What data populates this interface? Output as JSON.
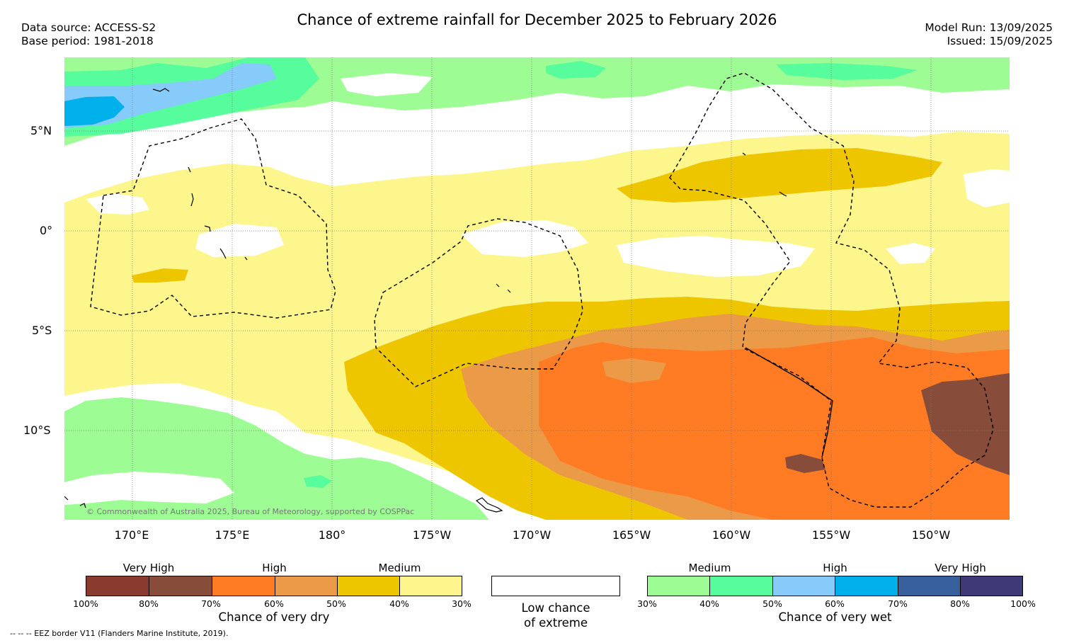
{
  "header": {
    "title": "Chance of extreme rainfall for December 2025 to February 2026",
    "data_source": "Data source: ACCESS-S2",
    "base_period": "Base period: 1981-2018",
    "model_run": "Model Run: 13/09/2025",
    "issued": "Issued: 15/09/2025"
  },
  "axes": {
    "lat_labels": [
      "5°N",
      "0°",
      "5°S",
      "10°S"
    ],
    "lon_labels": [
      "170°E",
      "175°E",
      "180°",
      "175°W",
      "170°W",
      "165°W",
      "160°W",
      "155°W",
      "150°W"
    ]
  },
  "colors": {
    "dry_very_high_1": "#8b3a30",
    "dry_very_high_2": "#874c3a",
    "dry_high_1": "#ff7b24",
    "dry_high_2": "#eb9a47",
    "dry_medium_1": "#eec600",
    "dry_medium_2": "#fdf68d",
    "low_chance": "#ffffff",
    "wet_medium_1": "#9dfc94",
    "wet_medium_2": "#57fd9d",
    "wet_high_1": "#87cbfa",
    "wet_high_2": "#00b0eb",
    "wet_very_high_1": "#365f9c",
    "wet_very_high_2": "#3d3a77",
    "eez_border": "#000000"
  },
  "legend": {
    "dry": {
      "group_labels": [
        "Very High",
        "High",
        "Medium"
      ],
      "ticks": [
        "100%",
        "80%",
        "70%",
        "60%",
        "50%",
        "40%",
        "30%"
      ],
      "caption": "Chance of very dry"
    },
    "low": {
      "caption_line1": "Low chance",
      "caption_line2": "of extreme"
    },
    "wet": {
      "group_labels": [
        "Medium",
        "High",
        "Very High"
      ],
      "ticks": [
        "30%",
        "40%",
        "50%",
        "60%",
        "70%",
        "80%",
        "100%"
      ],
      "caption": "Chance of very wet"
    }
  },
  "footer": {
    "copyright": "© Commonwealth of Australia 2025, Bureau of Meteorology, supported by COSPPac",
    "eez_note": "--  --  -- EEZ border V11 (Flanders Marine Institute, 2019)."
  }
}
